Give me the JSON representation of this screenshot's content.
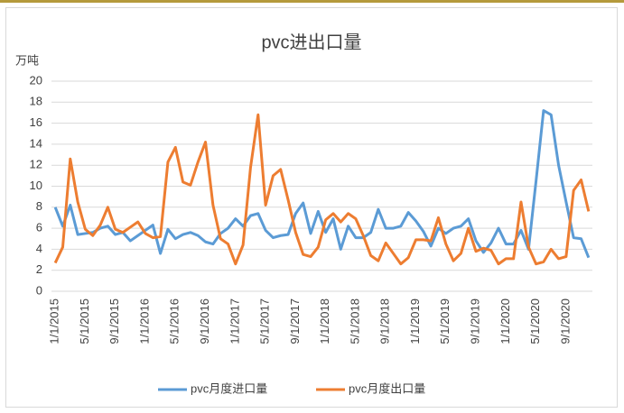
{
  "chart_data": {
    "type": "line",
    "title": "pvc进出口量",
    "y_label": "万吨",
    "categories": [
      "1/1/2015",
      null,
      null,
      null,
      "5/1/2015",
      null,
      null,
      null,
      "9/1/2015",
      null,
      null,
      null,
      "1/1/2016",
      null,
      null,
      null,
      "5/1/2016",
      null,
      null,
      null,
      "9/1/2016",
      null,
      null,
      null,
      "1/1/2017",
      null,
      null,
      null,
      "5/1/2017",
      null,
      null,
      null,
      "9/1/2017",
      null,
      null,
      null,
      "1/1/2018",
      null,
      null,
      null,
      "5/1/2018",
      null,
      null,
      null,
      "9/1/2018",
      null,
      null,
      null,
      "1/1/2019",
      null,
      null,
      null,
      "5/1/2019",
      null,
      null,
      null,
      "9/1/2019",
      null,
      null,
      null,
      "1/1/2020",
      null,
      null,
      null,
      "5/1/2020",
      null,
      null,
      null,
      "9/1/2020",
      null,
      null,
      null
    ],
    "series": [
      {
        "name": "pvc月度进口量",
        "color": "#5b9bd5",
        "values": [
          8.0,
          6.2,
          8.2,
          5.4,
          5.5,
          5.6,
          6.0,
          6.2,
          5.4,
          5.6,
          4.8,
          5.3,
          5.8,
          6.3,
          3.6,
          5.9,
          5.0,
          5.4,
          5.6,
          5.3,
          4.7,
          4.5,
          5.5,
          6.0,
          6.9,
          6.2,
          7.2,
          7.4,
          5.8,
          5.1,
          5.3,
          5.4,
          7.4,
          8.4,
          5.5,
          7.6,
          5.6,
          6.9,
          4.0,
          6.2,
          5.1,
          5.1,
          5.6,
          7.8,
          6.0,
          6.0,
          6.2,
          7.5,
          6.7,
          5.7,
          4.3,
          6.0,
          5.5,
          6.0,
          6.2,
          6.9,
          4.8,
          3.7,
          4.6,
          6.0,
          4.5,
          4.5,
          5.8,
          4.0,
          10.5,
          17.2,
          16.8,
          12.0,
          8.5,
          5.1,
          5.0,
          3.2
        ]
      },
      {
        "name": "pvc月度出口量",
        "color": "#ed7d31",
        "values": [
          2.7,
          4.2,
          12.6,
          8.5,
          5.9,
          5.3,
          6.3,
          8.0,
          5.9,
          5.6,
          6.1,
          6.6,
          5.5,
          5.1,
          5.2,
          12.3,
          13.7,
          10.4,
          10.1,
          12.3,
          14.2,
          8.2,
          5.0,
          4.5,
          2.6,
          4.4,
          11.8,
          16.8,
          8.2,
          11.0,
          11.6,
          8.7,
          5.6,
          3.5,
          3.3,
          4.2,
          6.8,
          7.4,
          6.6,
          7.4,
          6.9,
          5.3,
          3.4,
          2.9,
          4.6,
          3.6,
          2.6,
          3.2,
          4.9,
          4.9,
          4.8,
          7.0,
          4.5,
          2.9,
          3.6,
          6.0,
          3.8,
          4.1,
          3.9,
          2.6,
          3.1,
          3.1,
          8.5,
          4.2,
          2.6,
          2.8,
          4.0,
          3.1,
          3.3,
          9.6,
          10.6,
          7.6
        ]
      }
    ],
    "ylim": [
      0,
      20
    ],
    "yticks": [
      0,
      2,
      4,
      6,
      8,
      10,
      12,
      14,
      16,
      18,
      20
    ],
    "grid": true,
    "legend": "bottom"
  }
}
